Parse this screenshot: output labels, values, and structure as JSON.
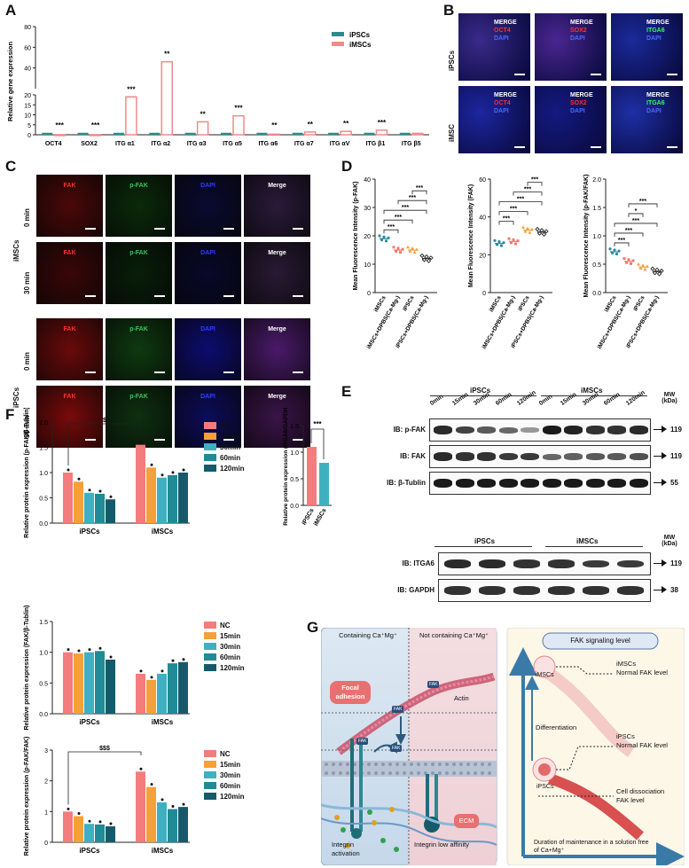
{
  "panels": {
    "A": "A",
    "B": "B",
    "C": "C",
    "D": "D",
    "E": "E",
    "F": "F",
    "G": "G"
  },
  "panelA": {
    "ylabel": "Relative gene expression",
    "legend": [
      {
        "name": "iPSCs",
        "color": "#2b8c8c"
      },
      {
        "name": "iMSCs",
        "color": "#f08a8a"
      }
    ],
    "categories": [
      "OCT4",
      "SOX2",
      "ITG α1",
      "ITG α2",
      "ITG α3",
      "ITG α5",
      "ITG α6",
      "ITG α7",
      "ITG αV",
      "ITG β1",
      "ITG β5"
    ],
    "ipsc": [
      1,
      1,
      1,
      1,
      1,
      1,
      1,
      1,
      1,
      1,
      1
    ],
    "imsc": [
      0.05,
      0.05,
      19,
      46,
      6.5,
      9.5,
      0.3,
      1.4,
      1.7,
      2.3,
      0.7
    ],
    "sig": [
      "***",
      "***",
      "***",
      "**",
      "**",
      "***",
      "**",
      "**",
      "**",
      "***",
      ""
    ],
    "yticks": [
      0,
      5,
      10,
      15,
      20,
      40,
      60,
      80
    ]
  },
  "panelB": {
    "row_labels": [
      "iPSCs",
      "iMSC"
    ],
    "tiles": [
      {
        "t": "MERGE",
        "m": "OCT4",
        "d": "DAPI",
        "mc": "#ff3030",
        "bg": "#3a2a8a"
      },
      {
        "t": "MERGE",
        "m": "SOX2",
        "d": "DAPI",
        "mc": "#ff3030",
        "bg": "#4a2690"
      },
      {
        "t": "MERGE",
        "m": "ITGA6",
        "d": "DAPI",
        "mc": "#30ff60",
        "bg": "#1a2a9a"
      },
      {
        "t": "MERGE",
        "m": "OCT4",
        "d": "DAPI",
        "mc": "#ff3030",
        "bg": "#1c26a0"
      },
      {
        "t": "MERGE",
        "m": "SOX2",
        "d": "DAPI",
        "mc": "#ff3030",
        "bg": "#141a80"
      },
      {
        "t": "MERGE",
        "m": "ITGA6",
        "d": "DAPI",
        "mc": "#30ff60",
        "bg": "#1e2fa6"
      }
    ]
  },
  "panelC": {
    "group_labels": [
      "iMSCs",
      "iPSCs"
    ],
    "time_labels": [
      "0 min",
      "30 min",
      "0 min",
      "30 min"
    ],
    "col_labels": [
      "FAK",
      "p-FAK",
      "DAPI",
      "Merge"
    ],
    "col_colors": [
      "#ff3030",
      "#40c060",
      "#2a40ff",
      "#ffffff"
    ]
  },
  "panelD": {
    "ylabels": [
      "Mean Fluorescence Intensity (p-FAK)",
      "Mean Fluorescence Intensity (FAK)",
      "Mean Fluorescence Intensity (p-FAK/FAK)"
    ],
    "groups": [
      "iMSCs",
      "iMSCs+DPBS(Ca-Mg-)",
      "iPSCs",
      "iPSCs+DPBS(Ca-Mg-)"
    ],
    "charts": [
      {
        "ylim": [
          0,
          40
        ],
        "yticks": [
          0,
          10,
          20,
          30,
          40
        ],
        "means": [
          19,
          15,
          15,
          12
        ]
      },
      {
        "ylim": [
          0,
          60
        ],
        "yticks": [
          0,
          20,
          40,
          60
        ],
        "means": [
          26,
          27,
          33,
          32
        ]
      },
      {
        "ylim": [
          0,
          2.0
        ],
        "yticks": [
          0.0,
          0.5,
          1.0,
          1.5,
          2.0
        ],
        "means": [
          0.72,
          0.55,
          0.45,
          0.37
        ]
      }
    ],
    "sig": "***",
    "sig2": "*"
  },
  "panelE": {
    "group_labels": [
      "iPSCs",
      "iMSCs"
    ],
    "times": [
      "0min",
      "15min",
      "30min",
      "60min",
      "120min",
      "0min",
      "15min",
      "30min",
      "60min",
      "120min"
    ],
    "mw_label": "MW (kDa)",
    "rows": [
      {
        "label": "IB: p-FAK",
        "mw": "119"
      },
      {
        "label": "IB: FAK",
        "mw": "119"
      },
      {
        "label": "IB: β-Tublin",
        "mw": "55"
      }
    ],
    "rows2": [
      {
        "label": "IB: ITGA6",
        "mw": "119"
      },
      {
        "label": "IB: GAPDH",
        "mw": "38"
      }
    ]
  },
  "panelF": {
    "legend": [
      {
        "name": "NC",
        "color": "#f47c7c"
      },
      {
        "name": "15min",
        "color": "#f5a038"
      },
      {
        "name": "30min",
        "color": "#3fb0bf"
      },
      {
        "name": "60min",
        "color": "#208a96"
      },
      {
        "name": "120min",
        "color": "#155a6a"
      }
    ],
    "groups": [
      "iPSCs",
      "iMSCs"
    ],
    "charts": [
      {
        "ylabel": "Relative protein expression (p-FAK/β-Tublin)",
        "ylim": [
          0,
          2.0
        ],
        "yticks": [
          "0.0",
          "0.5",
          "1.0",
          "1.5",
          "2.0"
        ],
        "values": [
          [
            1.0,
            0.82,
            0.6,
            0.58,
            0.47
          ],
          [
            1.55,
            1.1,
            0.9,
            0.95,
            1.0
          ]
        ],
        "bracket": "$"
      },
      {
        "ylabel": "Relative protein expression (FAK/β-Tublin)",
        "ylim": [
          0,
          1.5
        ],
        "yticks": [
          "0.0",
          "0.5",
          "1.0",
          "1.5"
        ],
        "values": [
          [
            1.0,
            0.98,
            1.0,
            1.02,
            0.88
          ],
          [
            0.65,
            0.55,
            0.65,
            0.82,
            0.84
          ]
        ],
        "bracket": ""
      },
      {
        "ylabel": "Relative protein expression (p-FAK/FAK)",
        "ylim": [
          0,
          3
        ],
        "yticks": [
          "0",
          "1",
          "2",
          "3"
        ],
        "values": [
          [
            1.0,
            0.85,
            0.6,
            0.58,
            0.52
          ],
          [
            2.3,
            1.8,
            1.3,
            1.08,
            1.15
          ]
        ],
        "bracket": "$$$"
      }
    ],
    "itga": {
      "ylabel": "Relative protein expression (ITGA6/GAPDH)",
      "ylim": [
        0,
        1.5
      ],
      "yticks": [
        "0.0",
        "0.5",
        "1.0",
        "1.5"
      ],
      "categories": [
        "iPSCs",
        "iMSCs"
      ],
      "values": [
        1.1,
        0.8
      ],
      "sig": "***"
    }
  },
  "panelG": {
    "left_top": "Containing Ca⁺Mg⁺",
    "right_top": "Not containing Ca⁺Mg⁺",
    "focal": "Focal adhesion",
    "actin": "Actin",
    "fak": "FAK",
    "ecm": "ECM",
    "integrin_act": "Integrin activation",
    "integrin_low": "Integrin low affinity",
    "header": "FAK signaling level",
    "imsc_label": "iMSCs",
    "imsc_normal": "Normal FAK level",
    "ipsc_label": "iPSCs",
    "ipsc_normal": "Normal FAK level",
    "differentiation": "Differentiation",
    "dissociation": "Cell dissociation",
    "dissociation2": "FAK level",
    "xaxis": "Duration of maintenance in a solution free of Ca+Mg⁺"
  }
}
